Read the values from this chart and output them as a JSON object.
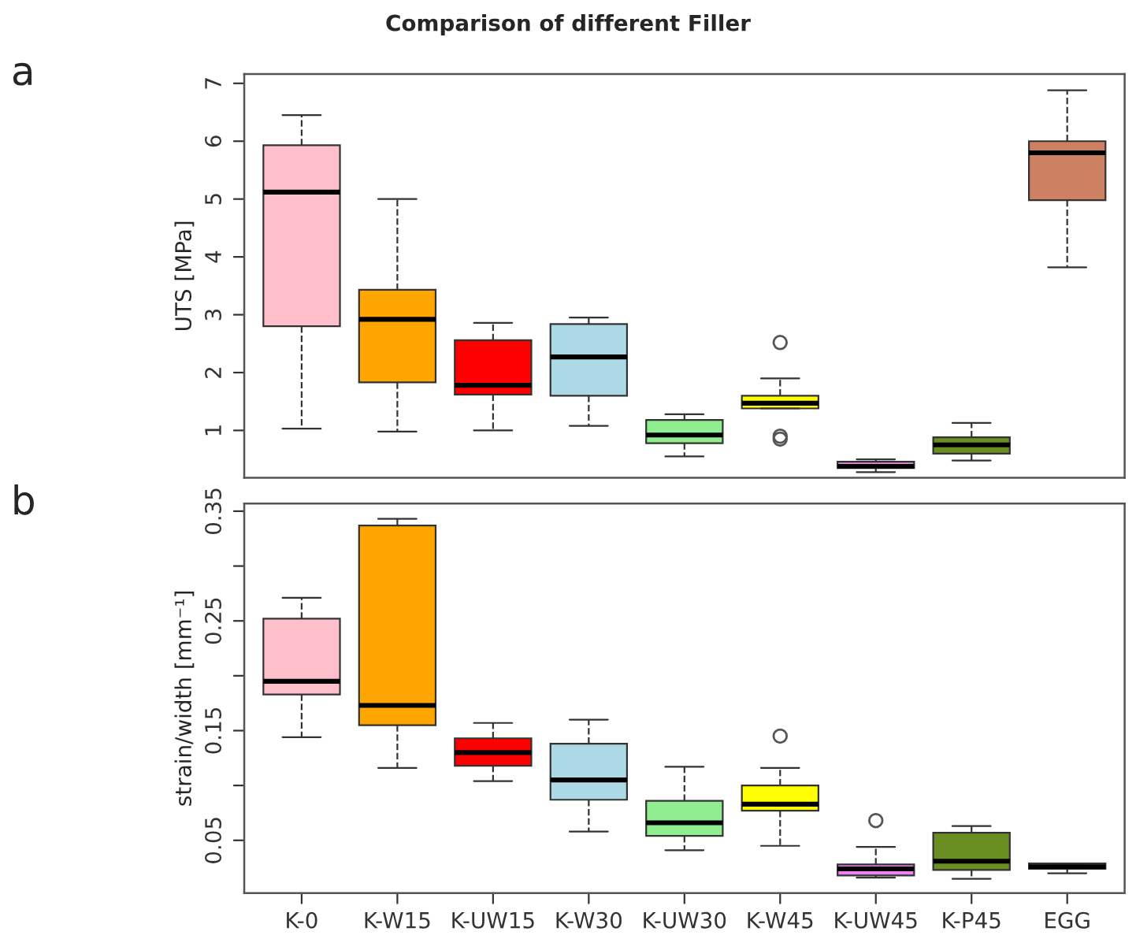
{
  "chart_data": [
    {
      "type": "box",
      "title": "Comparison of different Filler",
      "ylabel": "UTS [MPa]",
      "annotations": [
        "a"
      ],
      "categories": [
        null,
        null,
        null,
        null,
        null,
        null,
        null,
        null,
        null
      ],
      "colors": [
        "#ffc0cb",
        "#ffa500",
        "#ff0000",
        "#add8e6",
        "#90ee90",
        "#ffff00",
        "#ee82ee",
        "#6b8e23",
        "#cd8162"
      ],
      "boxes": [
        {
          "low": 1.03,
          "q1": 2.8,
          "median": 5.12,
          "q3": 5.93,
          "high": 6.45
        },
        {
          "low": 0.98,
          "q1": 1.83,
          "median": 2.92,
          "q3": 3.43,
          "high": 5.0
        },
        {
          "low": 1.0,
          "q1": 1.62,
          "median": 1.78,
          "q3": 2.56,
          "high": 2.86
        },
        {
          "low": 1.08,
          "q1": 1.6,
          "median": 2.27,
          "q3": 2.84,
          "high": 2.95
        },
        {
          "low": 0.55,
          "q1": 0.78,
          "median": 0.92,
          "q3": 1.18,
          "high": 1.28
        },
        {
          "low": 1.38,
          "q1": 1.38,
          "median": 1.47,
          "q3": 1.6,
          "high": 1.9,
          "outliers": [
            2.52,
            0.85,
            0.9
          ]
        },
        {
          "low": 0.28,
          "q1": 0.35,
          "median": 0.38,
          "q3": 0.46,
          "high": 0.5
        },
        {
          "low": 0.48,
          "q1": 0.6,
          "median": 0.75,
          "q3": 0.88,
          "high": 1.13
        },
        {
          "low": 3.82,
          "q1": 4.98,
          "median": 5.8,
          "q3": 6.0,
          "high": 6.88
        }
      ],
      "ylim": [
        0.18,
        7.16
      ],
      "yticks": [
        1,
        2,
        3,
        4,
        5,
        6,
        7
      ],
      "tick_labels": "y",
      "grid": false
    },
    {
      "type": "box",
      "ylabel": "strain/width [mm⁻¹]",
      "annotations": [
        "b"
      ],
      "categories": [
        "K-0",
        "K-W15",
        "K-UW15",
        "K-W30",
        "K-UW30",
        "K-W45",
        "K-UW45",
        "K-P45",
        "EGG"
      ],
      "colors": [
        "#ffc0cb",
        "#ffa500",
        "#ff0000",
        "#add8e6",
        "#90ee90",
        "#ffff00",
        "#ee82ee",
        "#6b8e23",
        "#cd8162"
      ],
      "boxes": [
        {
          "low": 0.144,
          "q1": 0.183,
          "median": 0.195,
          "q3": 0.252,
          "high": 0.271
        },
        {
          "low": 0.116,
          "q1": 0.155,
          "median": 0.173,
          "q3": 0.337,
          "high": 0.343
        },
        {
          "low": 0.104,
          "q1": 0.118,
          "median": 0.13,
          "q3": 0.143,
          "high": 0.157
        },
        {
          "low": 0.058,
          "q1": 0.087,
          "median": 0.105,
          "q3": 0.138,
          "high": 0.16
        },
        {
          "low": 0.041,
          "q1": 0.054,
          "median": 0.066,
          "q3": 0.086,
          "high": 0.117
        },
        {
          "low": 0.045,
          "q1": 0.077,
          "median": 0.083,
          "q3": 0.1,
          "high": 0.116,
          "outliers": [
            0.145
          ]
        },
        {
          "low": 0.016,
          "q1": 0.018,
          "median": 0.024,
          "q3": 0.028,
          "high": 0.044,
          "outliers": [
            0.068
          ]
        },
        {
          "low": 0.015,
          "q1": 0.023,
          "median": 0.031,
          "q3": 0.057,
          "high": 0.063
        },
        {
          "low": 0.02,
          "q1": 0.024,
          "median": 0.026,
          "q3": 0.029,
          "high": 0.029
        }
      ],
      "ylim": [
        0.002,
        0.357
      ],
      "yticks": [
        0.05,
        {
          "value": 0.1,
          "label": null
        },
        0.15,
        {
          "value": 0.2,
          "label": null
        },
        0.25,
        {
          "value": 0.3,
          "label": null
        },
        0.35
      ],
      "grid": false
    }
  ]
}
